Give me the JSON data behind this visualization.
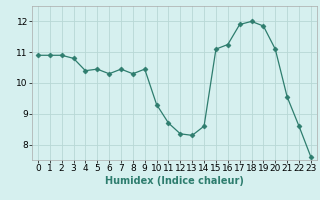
{
  "x": [
    0,
    1,
    2,
    3,
    4,
    5,
    6,
    7,
    8,
    9,
    10,
    11,
    12,
    13,
    14,
    15,
    16,
    17,
    18,
    19,
    20,
    21,
    22,
    23
  ],
  "y": [
    10.9,
    10.9,
    10.9,
    10.8,
    10.4,
    10.45,
    10.3,
    10.45,
    10.3,
    10.45,
    9.3,
    8.7,
    8.35,
    8.3,
    8.6,
    11.1,
    11.25,
    11.9,
    12.0,
    11.85,
    11.1,
    9.55,
    8.6,
    7.6
  ],
  "line_color": "#2e7d6e",
  "marker": "D",
  "marker_size": 2.5,
  "bg_color": "#d6f0ef",
  "grid_color": "#b8d8d5",
  "xlabel": "Humidex (Indice chaleur)",
  "ylim": [
    7.5,
    12.5
  ],
  "xlim": [
    -0.5,
    23.5
  ],
  "yticks": [
    8,
    9,
    10,
    11,
    12
  ],
  "xticks": [
    0,
    1,
    2,
    3,
    4,
    5,
    6,
    7,
    8,
    9,
    10,
    11,
    12,
    13,
    14,
    15,
    16,
    17,
    18,
    19,
    20,
    21,
    22,
    23
  ],
  "xlabel_fontsize": 7,
  "tick_fontsize": 6.5
}
